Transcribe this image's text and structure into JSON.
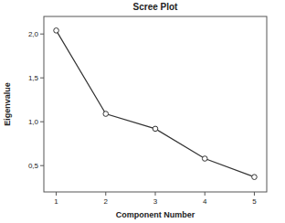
{
  "chart_data": {
    "type": "line",
    "title": "Scree Plot",
    "x_label": "Component Number",
    "y_label": "Eigenvalue",
    "x": [
      1,
      2,
      3,
      4,
      5
    ],
    "values": [
      2.04,
      1.09,
      0.92,
      0.58,
      0.37
    ],
    "xlim": [
      0.75,
      5.25
    ],
    "xticks": [
      1,
      2,
      3,
      4,
      5
    ],
    "ylim": [
      0.2,
      2.2
    ],
    "yticks": [
      {
        "value": 0.5,
        "label": "0,5"
      },
      {
        "value": 1.0,
        "label": "1,0"
      },
      {
        "value": 1.5,
        "label": "1,5"
      },
      {
        "value": 2.0,
        "label": "2,0"
      }
    ],
    "color": "#333333",
    "marker": "circle",
    "grid": false
  }
}
